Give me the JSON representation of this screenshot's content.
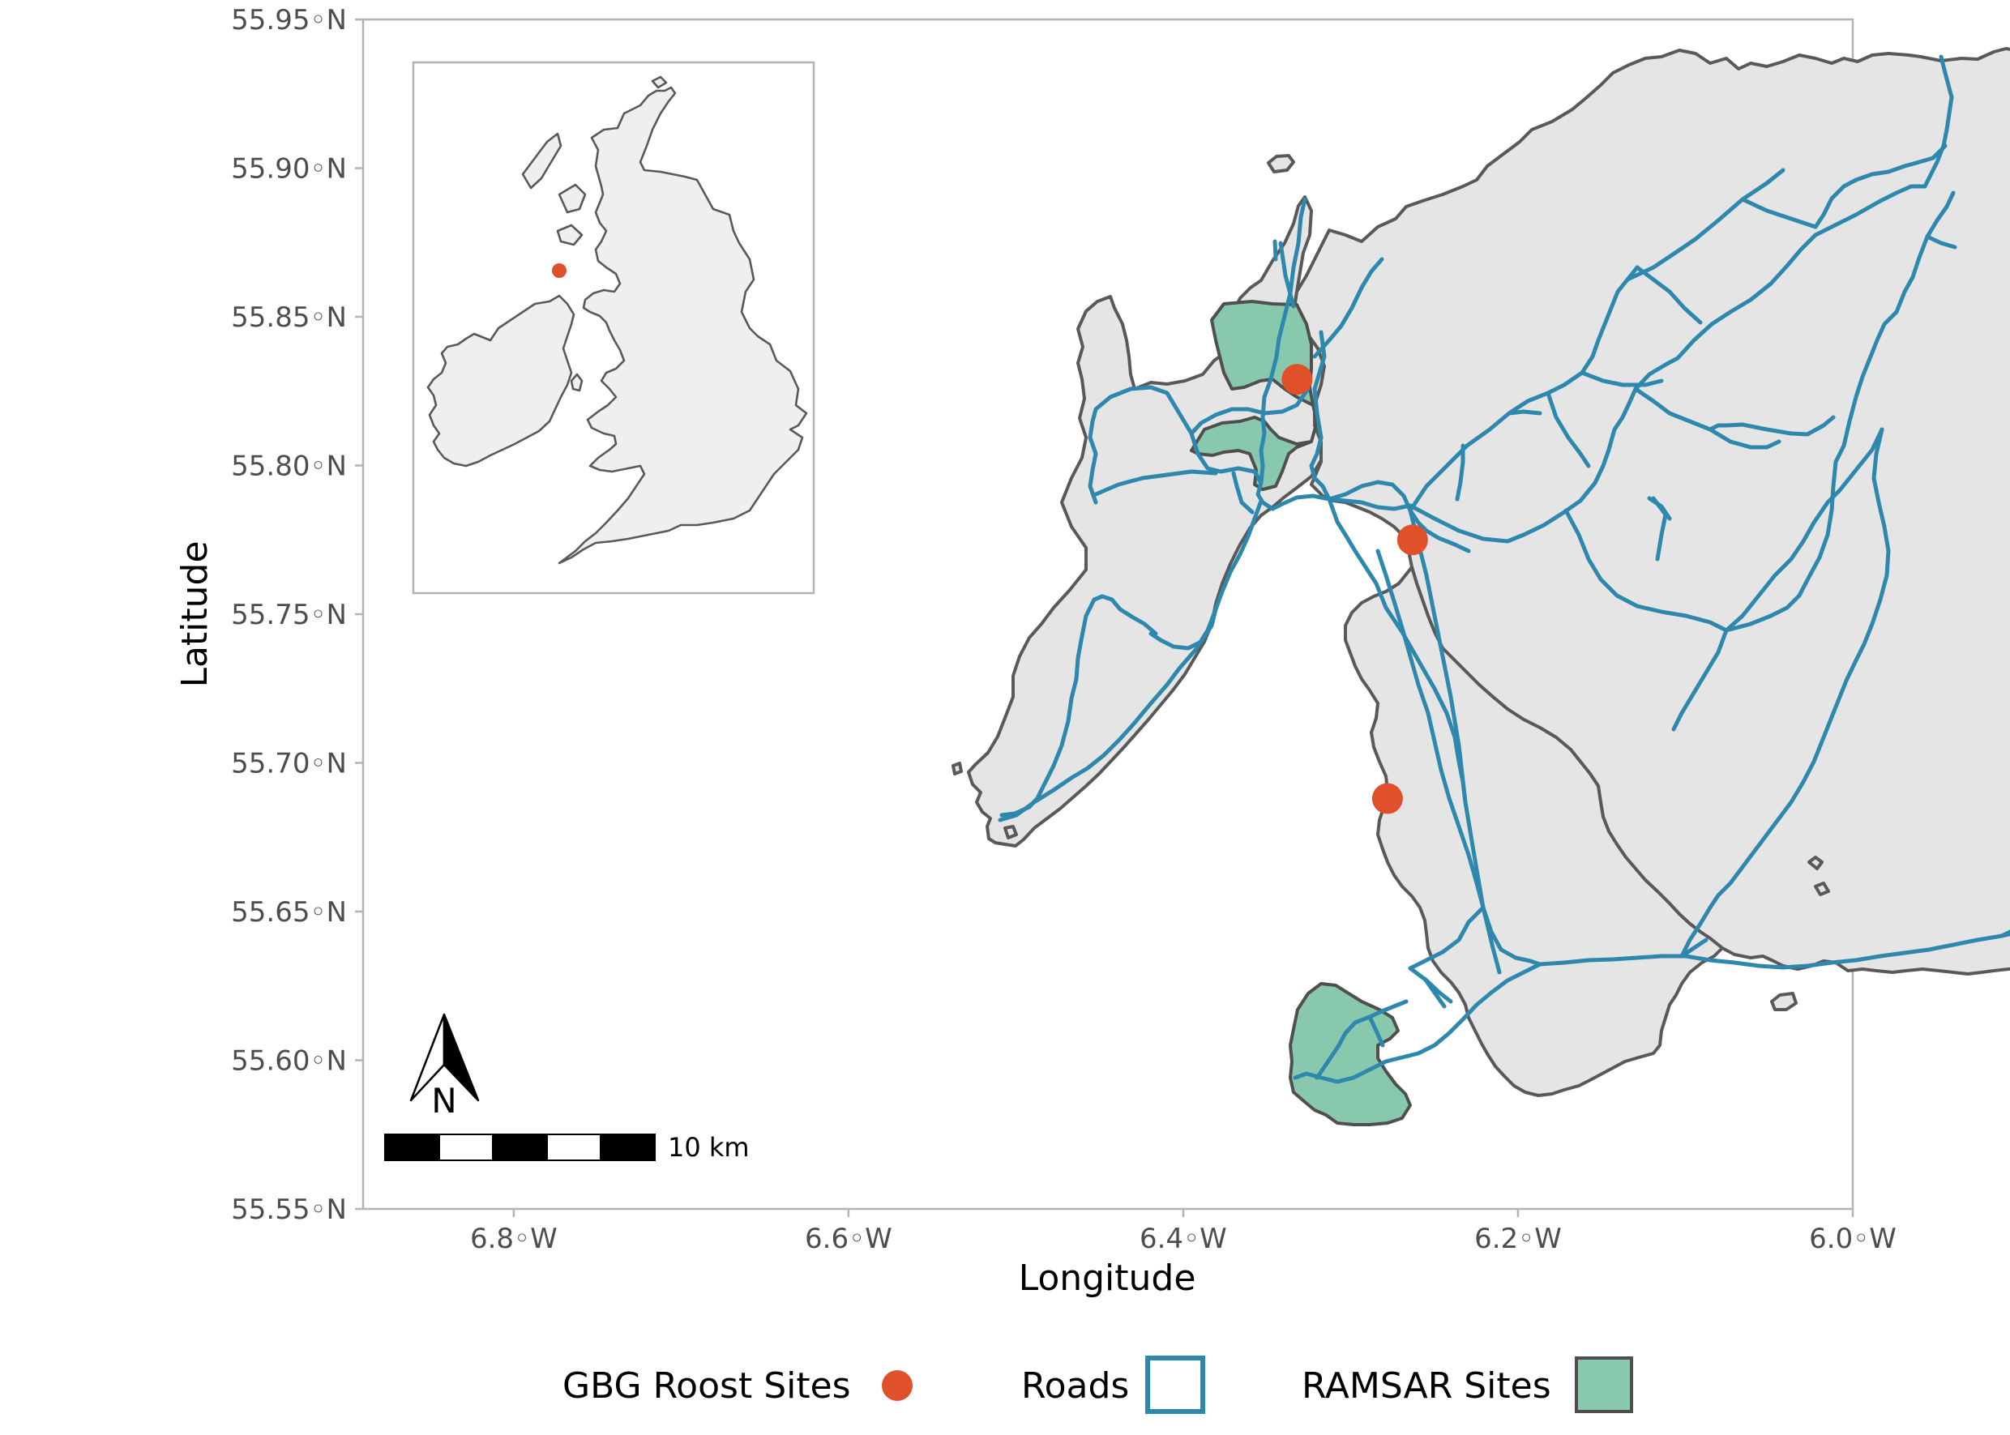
{
  "map": {
    "xlabel": "Longitude",
    "ylabel": "Latitude",
    "x_ticks": [
      "6.8◦W",
      "6.6◦W",
      "6.4◦W",
      "6.2◦W",
      "6.0◦W"
    ],
    "y_ticks": [
      "55.95◦N",
      "55.90◦N",
      "55.85◦N",
      "55.80◦N",
      "55.75◦N",
      "55.70◦N",
      "55.65◦N",
      "55.60◦N",
      "55.55◦N"
    ],
    "xlim": [
      -6.89,
      -6.0
    ],
    "ylim": [
      55.55,
      55.95
    ],
    "scale_bar_label": "10 km",
    "north_arrow_label": "N",
    "roost_sites": [
      {
        "lon": -6.332,
        "lat": 55.829
      },
      {
        "lon": -6.263,
        "lat": 55.775
      },
      {
        "lon": -6.278,
        "lat": 55.688
      }
    ],
    "colors": {
      "land": "#e5e5e5",
      "outline": "#595959",
      "roads": "#2e88ad",
      "ramsar": "#88c9ae",
      "roost": "#e0502b"
    }
  },
  "legend": {
    "roost_label": "GBG Roost Sites",
    "roads_label": "Roads",
    "ramsar_label": "RAMSAR Sites"
  }
}
